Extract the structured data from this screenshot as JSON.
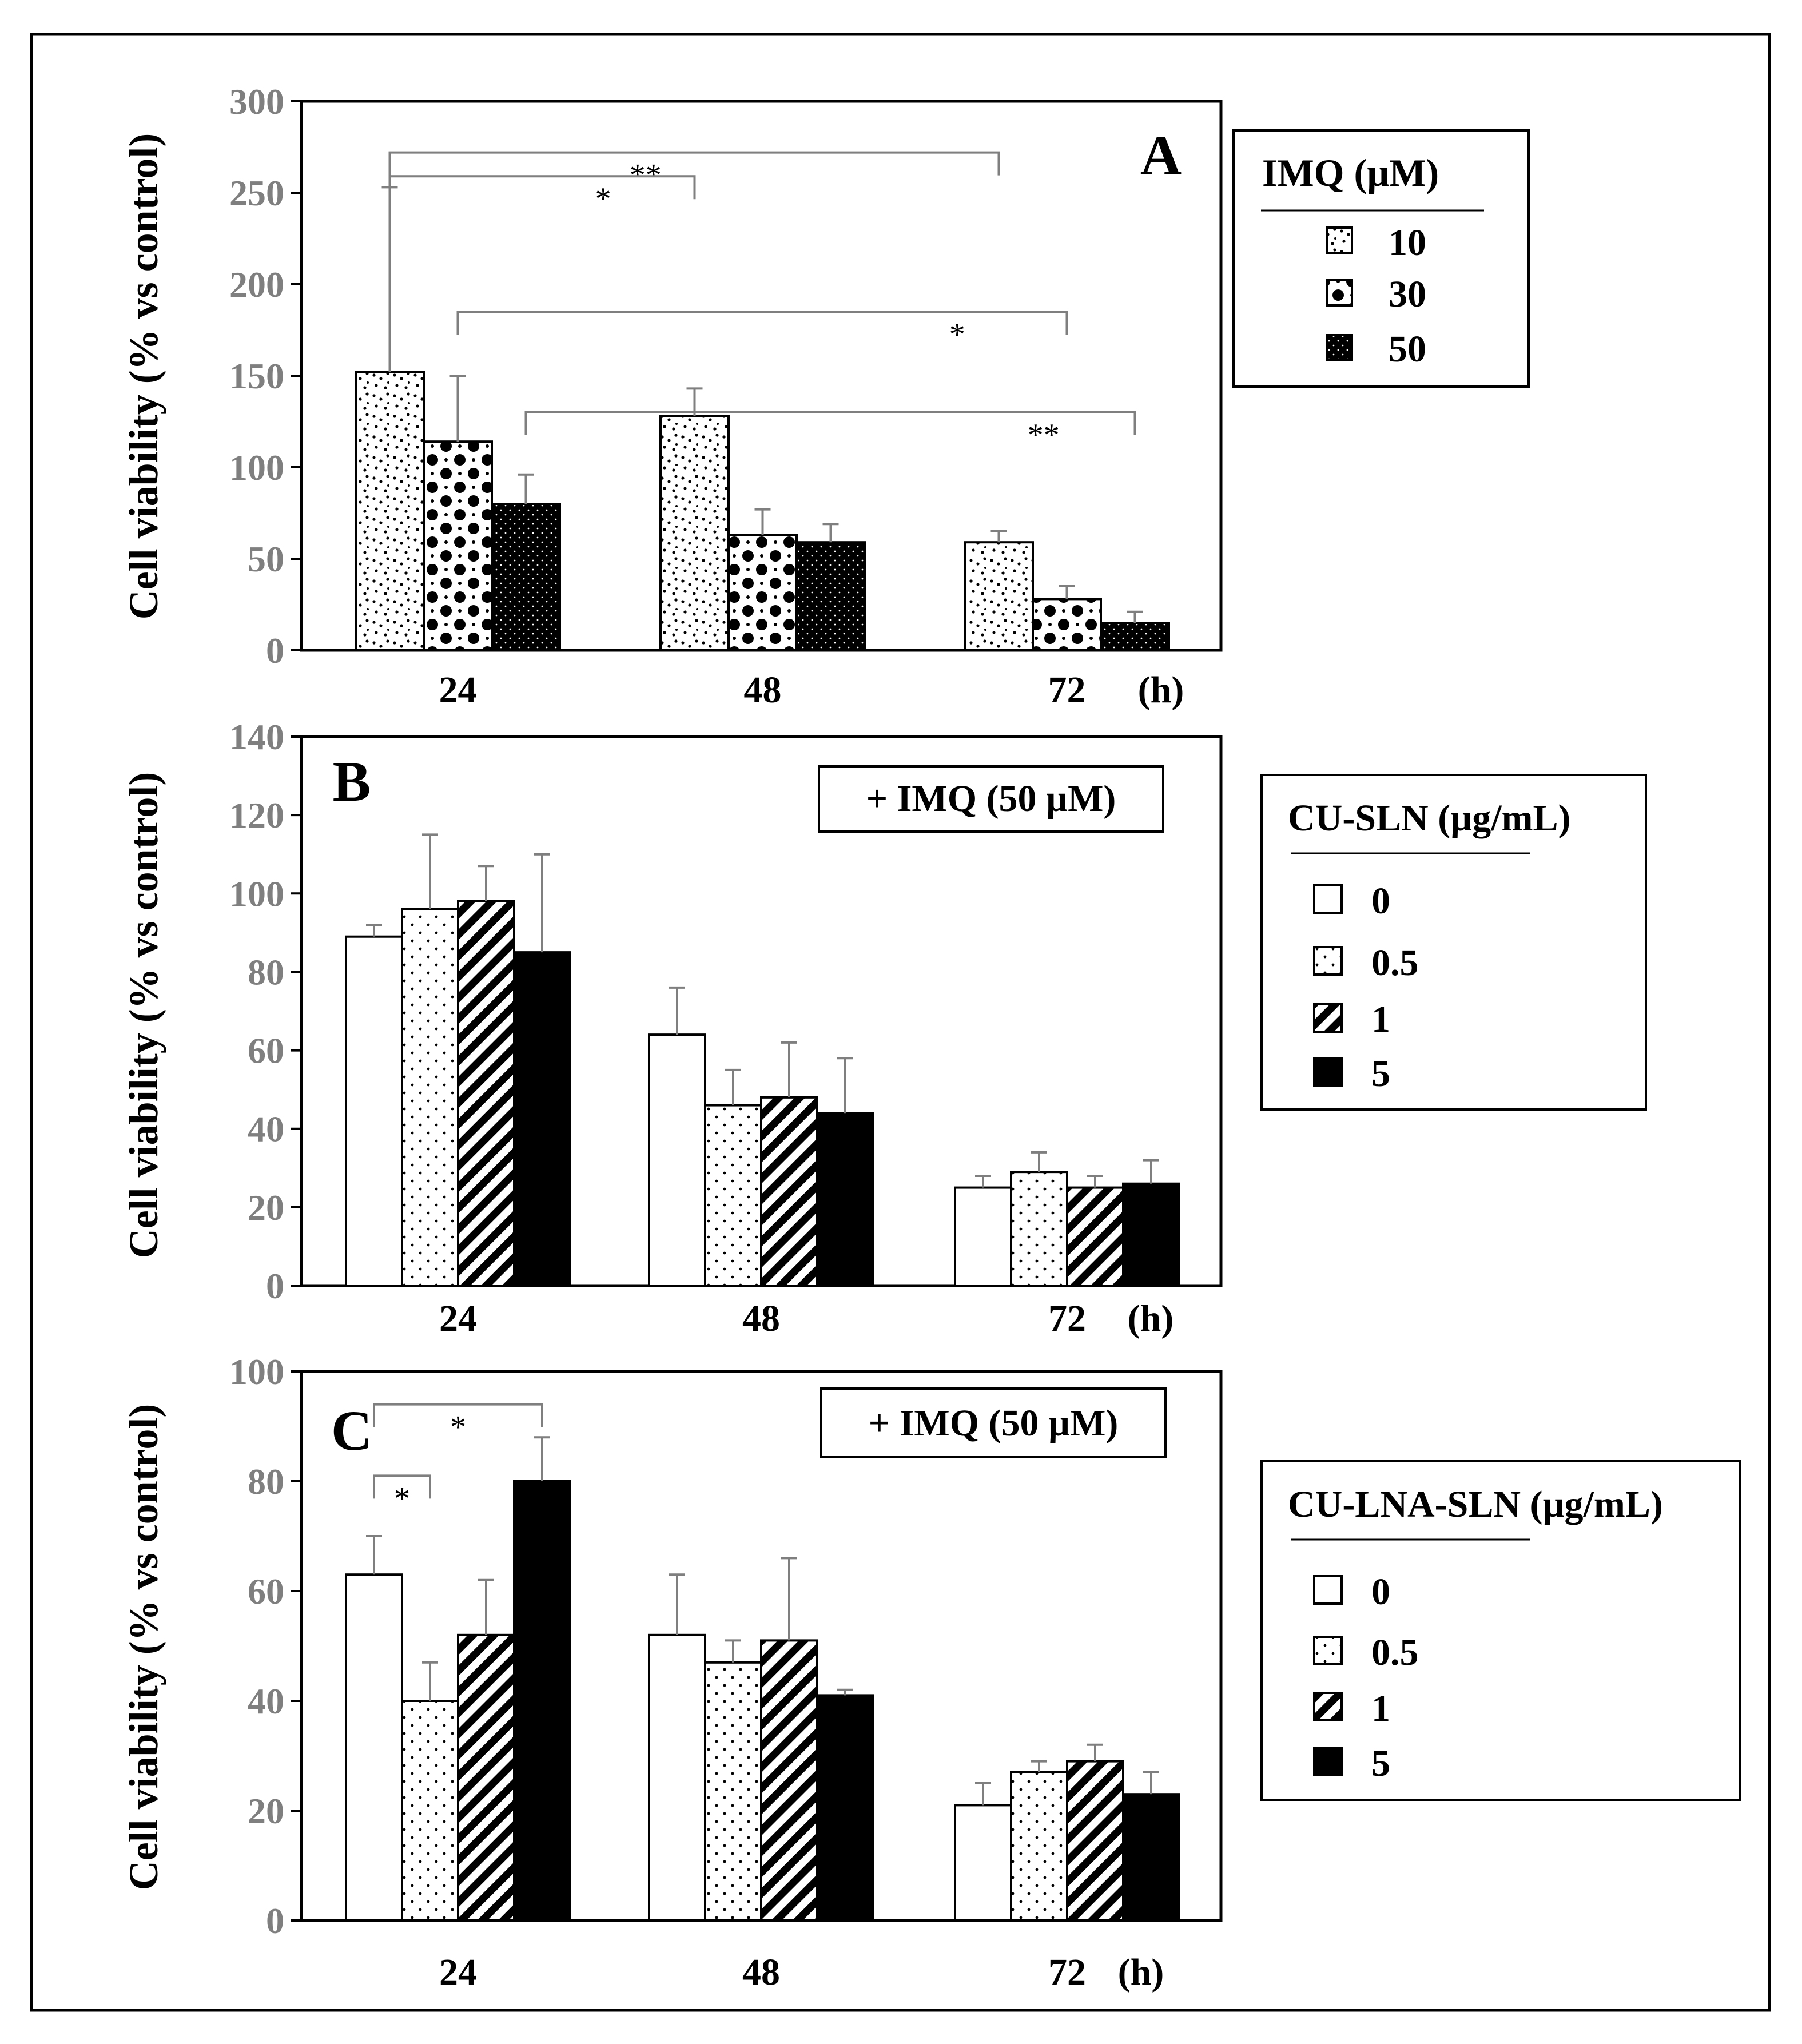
{
  "chart_data": [
    {
      "panel": "A",
      "type": "bar",
      "ylabel": "Cell viability  (% vs control)",
      "ylim": [
        0,
        300
      ],
      "ytick_step": 50,
      "ticks": [
        "0",
        "50",
        "100",
        "150",
        "200",
        "250",
        "300"
      ],
      "categories": [
        "24",
        "48",
        "72"
      ],
      "x_unit": "(h)",
      "legend_title": "IMQ (µM)",
      "series": [
        {
          "name": "10",
          "pattern": "dots10",
          "values": [
            152,
            128,
            59
          ],
          "errors": [
            101,
            15,
            6
          ]
        },
        {
          "name": "30",
          "pattern": "dots30",
          "values": [
            114,
            63,
            28
          ],
          "errors": [
            36,
            14,
            7
          ]
        },
        {
          "name": "50",
          "pattern": "dots50",
          "values": [
            80,
            59,
            15
          ],
          "errors": [
            16,
            10,
            6
          ]
        }
      ],
      "annotations": [
        {
          "label": "**",
          "y": 272,
          "from": {
            "cat": 0,
            "series": 0
          },
          "to": {
            "cat": 2,
            "series": 0
          },
          "label_x": 0.42,
          "label_y": 0
        },
        {
          "label": "*",
          "y": 259,
          "from": {
            "cat": 0,
            "series": 0
          },
          "to": {
            "cat": 1,
            "series": 0
          },
          "label_x": 0.7,
          "label_y": 0
        },
        {
          "label": "*",
          "y": 185,
          "from": {
            "cat": 0,
            "series": 1
          },
          "to": {
            "cat": 2,
            "series": 1
          },
          "label_x": 0.82,
          "label_y": 0
        },
        {
          "label": "**",
          "y": 130,
          "from": {
            "cat": 0,
            "series": 2
          },
          "to": {
            "cat": 2,
            "series": 2
          },
          "label_x": 0.85,
          "label_y": 0
        }
      ]
    },
    {
      "panel": "B",
      "type": "bar",
      "ylabel": "Cell viability  (% vs control)",
      "ylim": [
        0,
        140
      ],
      "ytick_step": 20,
      "ticks": [
        "0",
        "20",
        "40",
        "60",
        "80",
        "100",
        "120",
        "140"
      ],
      "categories": [
        "24",
        "48",
        "72"
      ],
      "x_unit": "(h)",
      "inset_label": "+ IMQ (50 µM)",
      "legend_title": "CU-SLN (µg/mL)",
      "series": [
        {
          "name": "0",
          "pattern": "white",
          "values": [
            89,
            64,
            25
          ],
          "errors": [
            3,
            12,
            3
          ]
        },
        {
          "name": "0.5",
          "pattern": "dots",
          "values": [
            96,
            46,
            29
          ],
          "errors": [
            19,
            9,
            5
          ]
        },
        {
          "name": "1",
          "pattern": "hatch",
          "values": [
            98,
            48,
            25
          ],
          "errors": [
            9,
            14,
            3
          ]
        },
        {
          "name": "5",
          "pattern": "black",
          "values": [
            85,
            44,
            26
          ],
          "errors": [
            25,
            14,
            6
          ]
        }
      ],
      "annotations": []
    },
    {
      "panel": "C",
      "type": "bar",
      "ylabel": "Cell viability  (% vs control)",
      "ylim": [
        0,
        100
      ],
      "ytick_step": 20,
      "ticks": [
        "0",
        "20",
        "40",
        "60",
        "80",
        "100"
      ],
      "categories": [
        "24",
        "48",
        "72"
      ],
      "x_unit": "(h)",
      "inset_label": "+ IMQ (50 µM)",
      "legend_title": "CU-LNA-SLN (µg/mL)",
      "series": [
        {
          "name": "0",
          "pattern": "white",
          "values": [
            63,
            52,
            21
          ],
          "errors": [
            7,
            11,
            4
          ]
        },
        {
          "name": "0.5",
          "pattern": "dots",
          "values": [
            40,
            47,
            27
          ],
          "errors": [
            7,
            4,
            2
          ]
        },
        {
          "name": "1",
          "pattern": "hatch",
          "values": [
            52,
            51,
            29
          ],
          "errors": [
            10,
            15,
            3
          ]
        },
        {
          "name": "5",
          "pattern": "black",
          "values": [
            80,
            41,
            23
          ],
          "errors": [
            8,
            1,
            4
          ]
        }
      ],
      "annotations": [
        {
          "label": "*",
          "y": 94,
          "from": {
            "cat": 0,
            "series": 0
          },
          "to": {
            "cat": 0,
            "series": 3
          },
          "label_x": 0.5,
          "label_y": 0
        },
        {
          "label": "*",
          "y": 81,
          "from": {
            "cat": 0,
            "series": 0
          },
          "to": {
            "cat": 0,
            "series": 1
          },
          "label_x": 0.5,
          "label_y": 0
        }
      ]
    }
  ]
}
